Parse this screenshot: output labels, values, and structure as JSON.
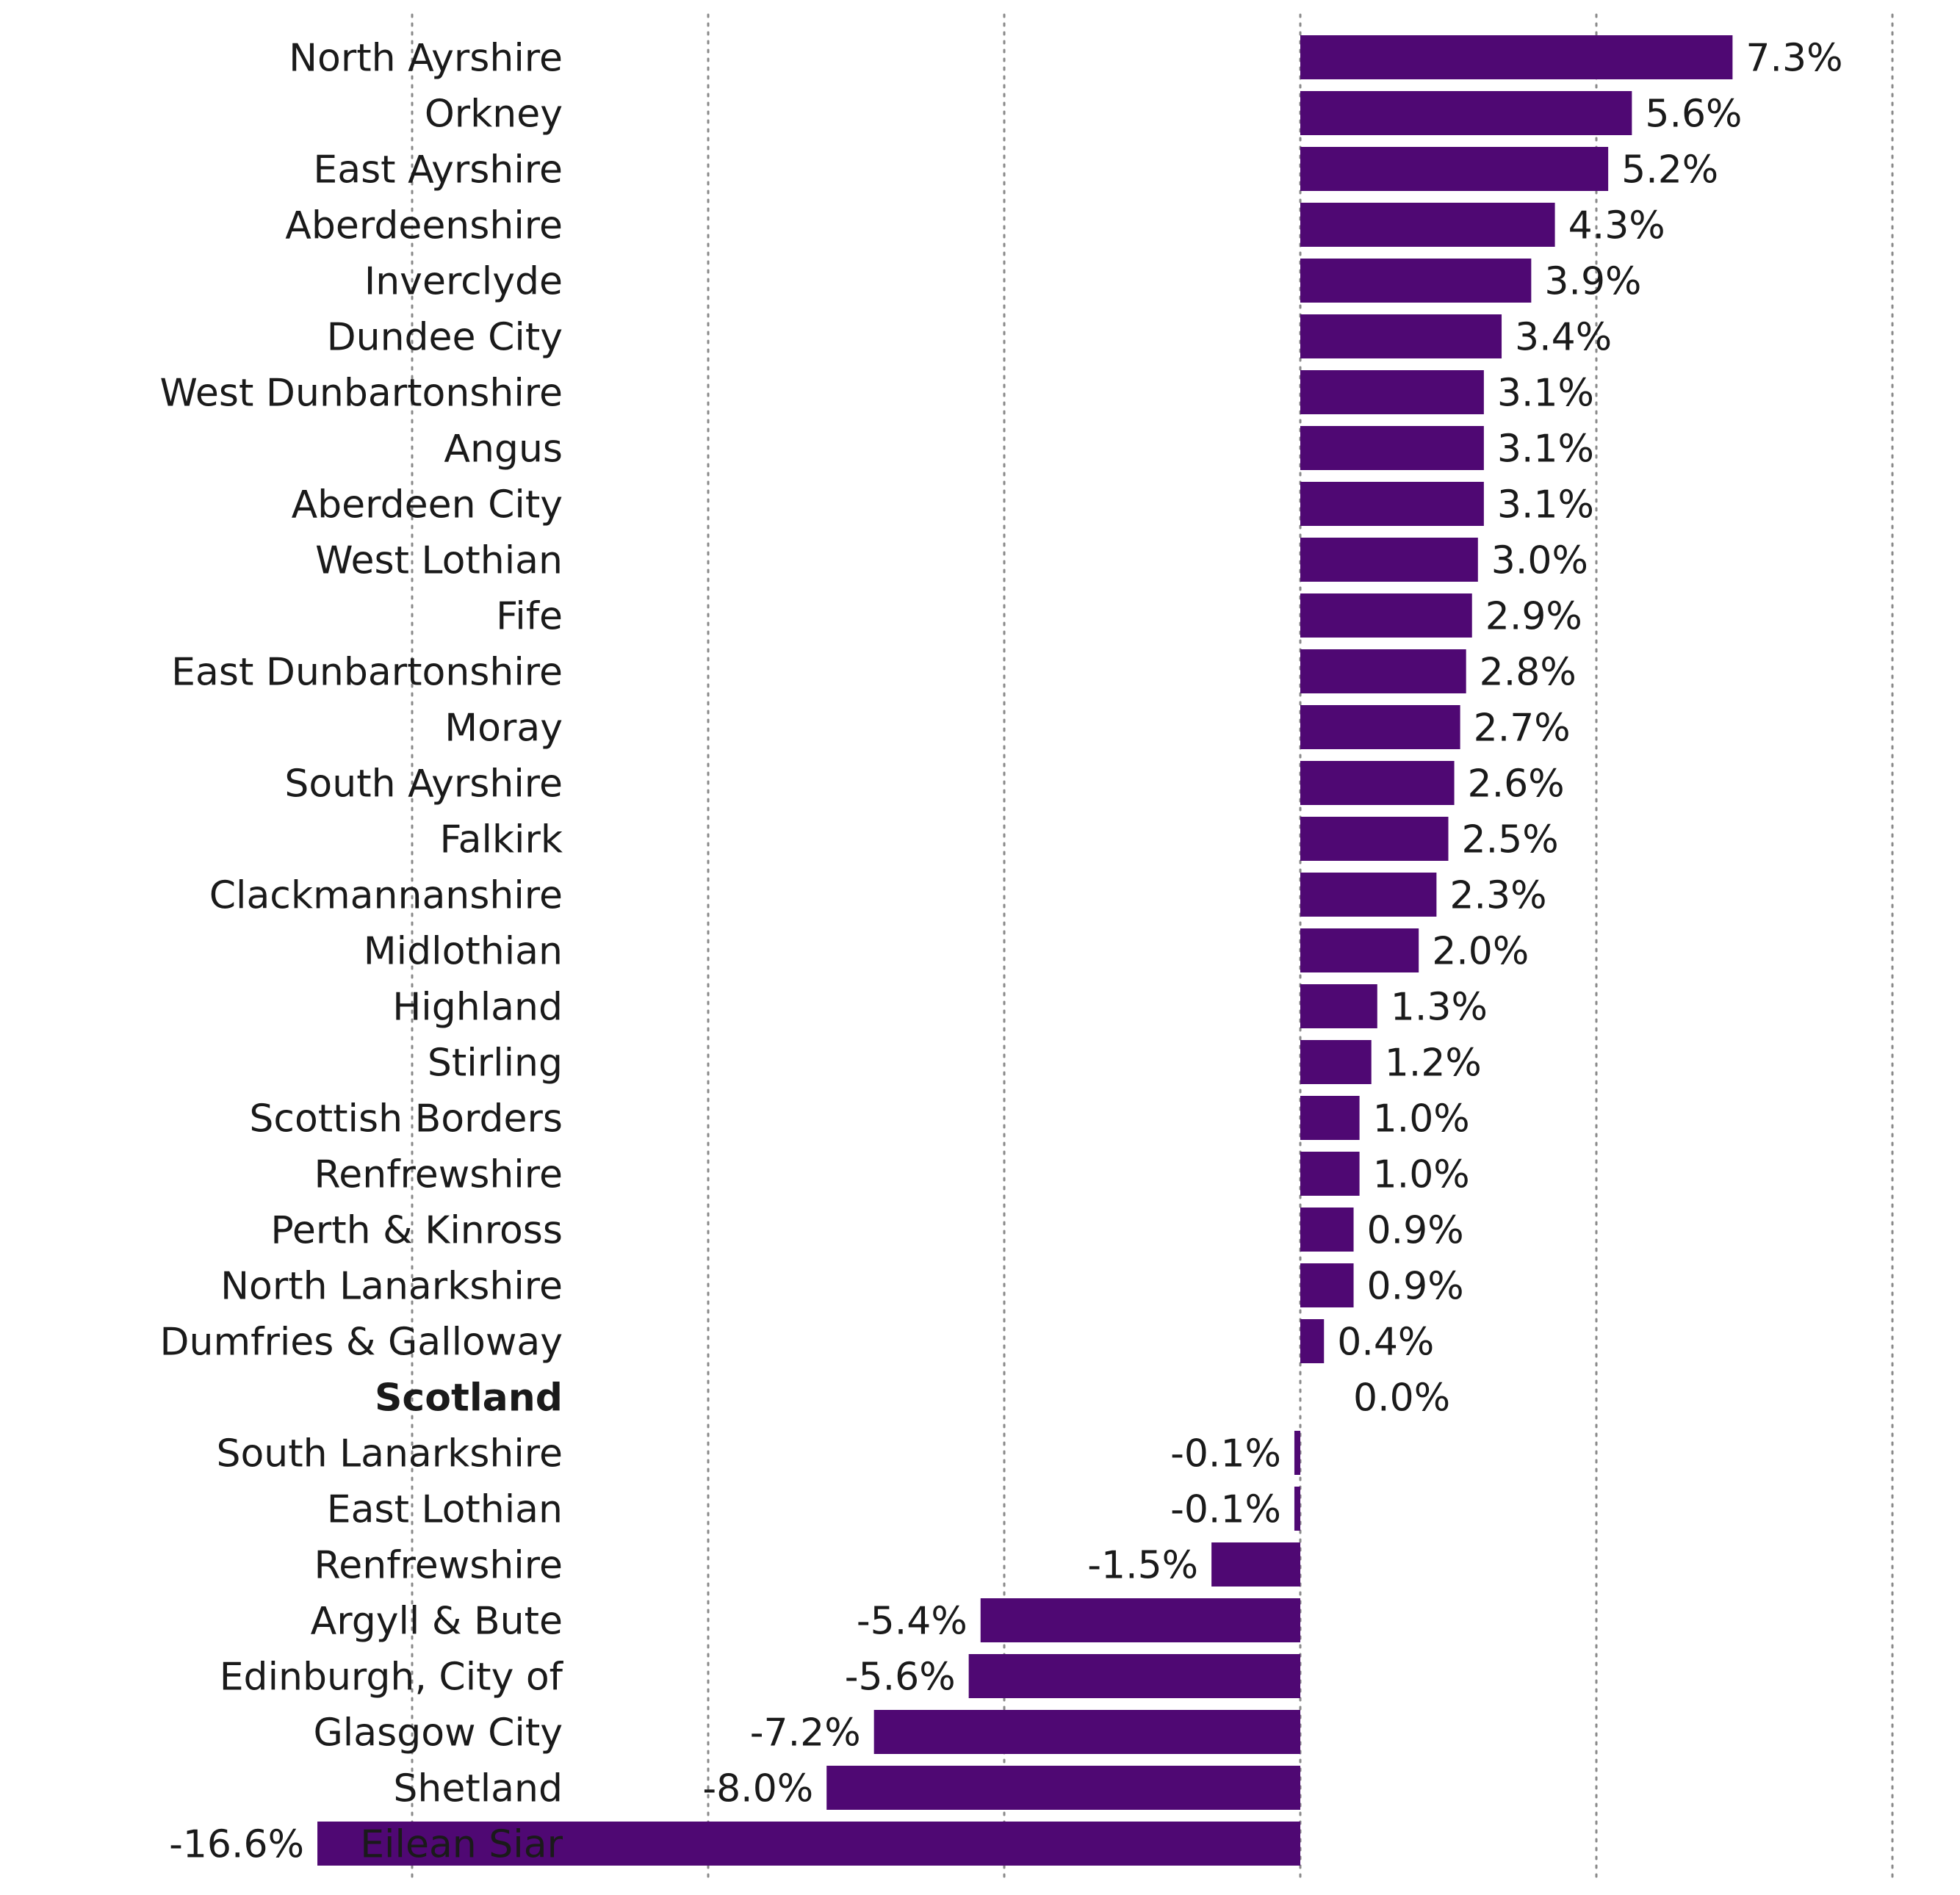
{
  "chart_data": {
    "type": "bar",
    "orientation": "horizontal",
    "title": "",
    "xlabel": "",
    "ylabel": "",
    "xlim": [
      -20,
      10
    ],
    "grid": true,
    "bar_color": "#4f0873",
    "categories": [
      "North Ayrshire",
      "Orkney",
      "East Ayrshire",
      "Aberdeenshire",
      "Inverclyde",
      "Dundee City",
      "West Dunbartonshire",
      "Angus",
      "Aberdeen City",
      "West Lothian",
      "Fife",
      "East Dunbartonshire",
      "Moray",
      "South Ayrshire",
      "Falkirk",
      "Clackmannanshire",
      "Midlothian",
      "Highland",
      "Stirling",
      "Scottish Borders",
      "Renfrewshire",
      "Perth & Kinross",
      "North Lanarkshire",
      "Dumfries & Galloway",
      "Scotland",
      "South Lanarkshire",
      "East Lothian",
      "Renfrewshire",
      "Argyll & Bute",
      "Edinburgh, City of",
      "Glasgow City",
      "Shetland",
      "Eilean Siar"
    ],
    "values": [
      7.3,
      5.6,
      5.2,
      4.3,
      3.9,
      3.4,
      3.1,
      3.1,
      3.1,
      3.0,
      2.9,
      2.8,
      2.7,
      2.6,
      2.5,
      2.3,
      2.0,
      1.3,
      1.2,
      1.0,
      1.0,
      0.9,
      0.9,
      0.4,
      0.0,
      -0.1,
      -0.1,
      -1.5,
      -5.4,
      -5.6,
      -7.2,
      -8.0,
      -16.6
    ],
    "data_labels": [
      "7.3%",
      "5.6%",
      "5.2%",
      "4.3%",
      "3.9%",
      "3.4%",
      "3.1%",
      "3.1%",
      "3.1%",
      "3.0%",
      "2.9%",
      "2.8%",
      "2.7%",
      "2.6%",
      "2.5%",
      "2.3%",
      "2.0%",
      "1.3%",
      "1.2%",
      "1.0%",
      "1.0%",
      "0.9%",
      "0.9%",
      "0.4%",
      "0.0%",
      "-0.1%",
      "-0.1%",
      "-1.5%",
      "-5.4%",
      "-5.6%",
      "-7.2%",
      "-8.0%",
      "-16.6%"
    ],
    "highlighted_category": "Scotland"
  }
}
